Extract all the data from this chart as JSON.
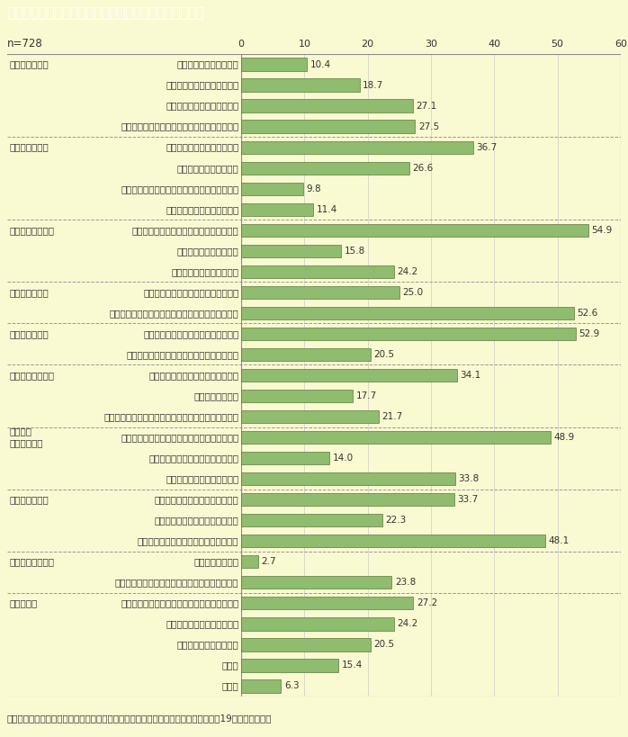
{
  "title": "第１－５－２図　離れて生活を始めるに当たっての困難",
  "n_label": "n=728",
  "x_max": 60,
  "x_ticks": [
    0,
    10,
    20,
    30,
    40,
    50,
    60
  ],
  "x_label": "(%)",
  "background_color": "#FAFAD2",
  "title_bg_color": "#7B6645",
  "title_text_color": "#FFFFFF",
  "bar_color": "#8FBC6F",
  "bar_edge_color": "#5A7A3A",
  "footer": "（備考）内閣府「配偶者からの暴力の被害者の自立支援等に関する調査結果」（平成19年）より作成。",
  "categories": [
    {
      "label": "公的施設に入所できない",
      "group_label": "【住居のこと】",
      "value": 10.4,
      "sep_after": false
    },
    {
      "label": "民間賃貸住宅に入居できない",
      "group_label": "",
      "value": 18.7,
      "sep_after": false
    },
    {
      "label": "公的賃貸住宅に入居できない",
      "group_label": "",
      "value": 27.1,
      "sep_after": false
    },
    {
      "label": "民間賃貸住宅に入居するための保証人がいない",
      "group_label": "",
      "value": 27.5,
      "sep_after": true
    },
    {
      "label": "適当な就職先が見つからない",
      "group_label": "【就労のこと】",
      "value": 36.7,
      "sep_after": false
    },
    {
      "label": "就職に必要な技能がない",
      "group_label": "",
      "value": 26.6,
      "sep_after": false
    },
    {
      "label": "どのように就職活動をすればよいかわからない",
      "group_label": "",
      "value": 9.8,
      "sep_after": false
    },
    {
      "label": "就職に必要な保証人がいない",
      "group_label": "",
      "value": 11.4,
      "sep_after": true
    },
    {
      "label": "当面の生活をするために必要なお金がない",
      "group_label": "【経済的なこと】",
      "value": 54.9,
      "sep_after": false
    },
    {
      "label": "生活保護が受けられない",
      "group_label": "",
      "value": 15.8,
      "sep_after": false
    },
    {
      "label": "児童扶養手当がもらえない",
      "group_label": "",
      "value": 24.2,
      "sep_after": true
    },
    {
      "label": "健康保険や年金などの手続がめんどう",
      "group_label": "【手続のこと】",
      "value": 25.0,
      "sep_after": false
    },
    {
      "label": "住所を知られないようにするため住民票を移せない",
      "group_label": "",
      "value": 52.6,
      "sep_after": true
    },
    {
      "label": "自分の体調や気持ちが回復していない",
      "group_label": "【健康のこと】",
      "value": 52.9,
      "sep_after": false
    },
    {
      "label": "お金がなくて病院での治療等を受けられない",
      "group_label": "",
      "value": 20.5,
      "sep_after": true
    },
    {
      "label": "子どもの就学や保育所に関すること",
      "group_label": "【子どものこと】",
      "value": 34.1,
      "sep_after": false
    },
    {
      "label": "子どもの問題行動",
      "group_label": "",
      "value": 17.7,
      "sep_after": false
    },
    {
      "label": "子どもを相手のもとから取り戻すことや子どもの親権",
      "group_label": "",
      "value": 21.7,
      "sep_after": true
    },
    {
      "label": "裁判や調停に時間やエネルギー，お金を要する",
      "group_label": "【裁判・\n調停のこと】",
      "value": 48.9,
      "sep_after": false
    },
    {
      "label": "保護命令の申し立て手続がめんどう",
      "group_label": "",
      "value": 14.0,
      "sep_after": false
    },
    {
      "label": "相手が離婚に応じてくれない",
      "group_label": "",
      "value": 33.8,
      "sep_after": true
    },
    {
      "label": "相手からの追跡や嫌がらせがある",
      "group_label": "【相手のこと】",
      "value": 33.7,
      "sep_after": false
    },
    {
      "label": "相手が子どもとの面会を要求する",
      "group_label": "",
      "value": 22.3,
      "sep_after": false
    },
    {
      "label": "相手が怖くて家に荷物を取りに行けない",
      "group_label": "",
      "value": 48.1,
      "sep_after": true
    },
    {
      "label": "母国語が通じない",
      "group_label": "【支援者のこと】",
      "value": 2.7,
      "sep_after": false
    },
    {
      "label": "公的機関等の支援者から心ない言葉をかけられた",
      "group_label": "",
      "value": 23.8,
      "sep_after": true
    },
    {
      "label": "どうすれば自立して生活できるのか情報がない",
      "group_label": "【その他】",
      "value": 27.2,
      "sep_after": false
    },
    {
      "label": "相談できる人が周りにいない",
      "group_label": "",
      "value": 24.2,
      "sep_after": false
    },
    {
      "label": "新しい環境になじめない",
      "group_label": "",
      "value": 20.5,
      "sep_after": false
    },
    {
      "label": "その他",
      "group_label": "",
      "value": 15.4,
      "sep_after": false
    },
    {
      "label": "無回答",
      "group_label": "",
      "value": 6.3,
      "sep_after": false
    }
  ]
}
